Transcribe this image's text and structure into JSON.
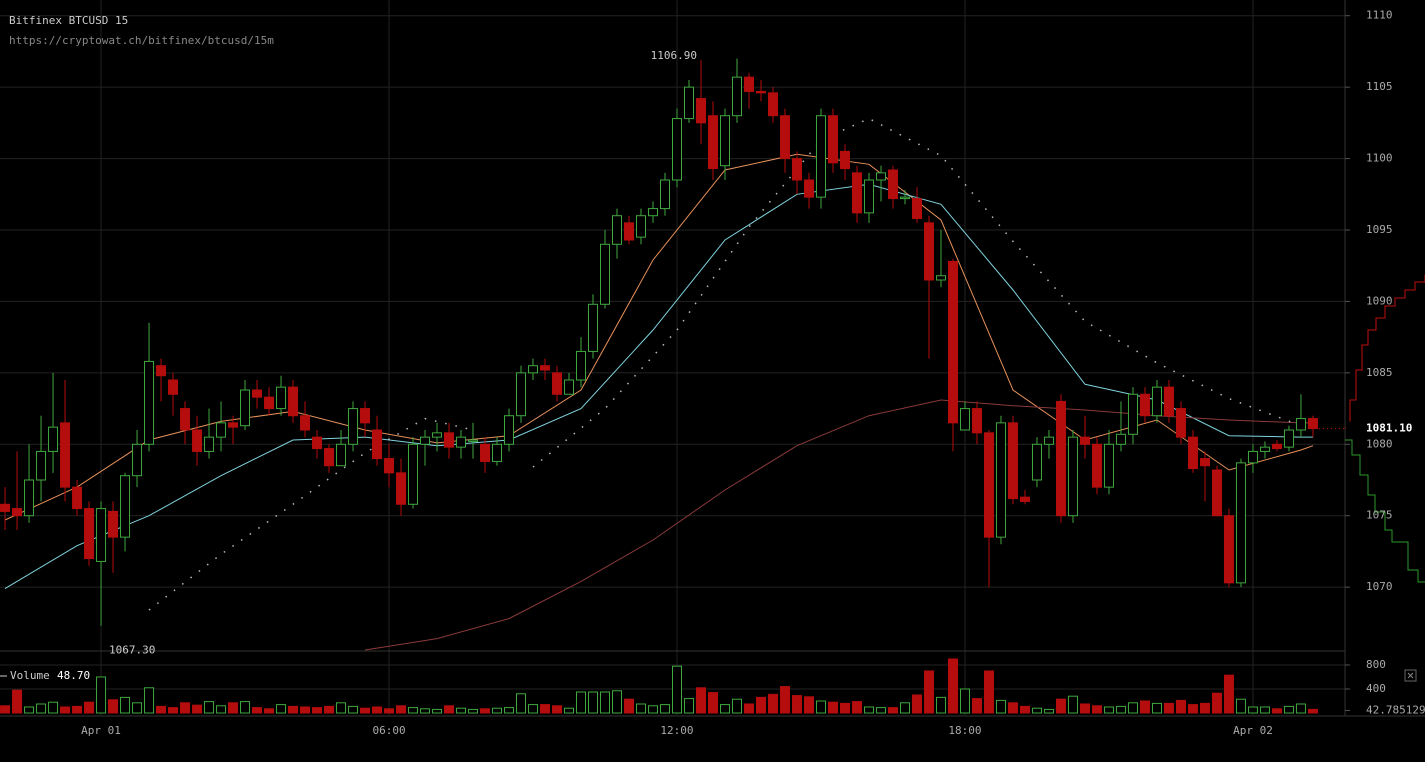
{
  "chart_data": {
    "type": "candlestick",
    "title": "Bitfinex BTCUSD 15",
    "subtitle": "https://cryptowat.ch/bitfinex/btcusd/15m",
    "up_color": "#3fa83f",
    "down_color": "#b50d0d",
    "grid": true,
    "xlim": [
      -0.42,
      111.67
    ],
    "xticks": [
      {
        "value": 8,
        "label": "Apr 01"
      },
      {
        "value": 32,
        "label": "06:00"
      },
      {
        "value": 56,
        "label": "12:00"
      },
      {
        "value": 80,
        "label": "18:00"
      },
      {
        "value": 104,
        "label": "Apr 02"
      }
    ],
    "ylim": [
      1065.6,
      1111.1
    ],
    "yticks": [
      1070,
      1075,
      1080,
      1085,
      1090,
      1095,
      1100,
      1105,
      1110
    ],
    "open": [
      1075.8,
      1075.5,
      1075,
      1077.5,
      1079.5,
      1081.5,
      1077,
      1075.5,
      1071.8,
      1075.3,
      1073.5,
      1077.8,
      1080,
      1085.5,
      1084.5,
      1082.5,
      1081,
      1079.5,
      1080.5,
      1081.5,
      1081.3,
      1083.8,
      1083.3,
      1082.5,
      1084,
      1082,
      1080.5,
      1079.7,
      1078.5,
      1080,
      1082.5,
      1081,
      1079,
      1078,
      1075.8,
      1080,
      1080.5,
      1080.8,
      1079.8,
      1080.2,
      1080,
      1078.8,
      1080,
      1082,
      1085,
      1085.5,
      1085,
      1083.5,
      1084.5,
      1086.5,
      1089.8,
      1094,
      1095.5,
      1094.5,
      1096,
      1096.5,
      1098.5,
      1102.8,
      1104.2,
      1103,
      1099.5,
      1103,
      1105.7,
      1104.7,
      1104.6,
      1103,
      1100,
      1098.5,
      1097.3,
      1103,
      1100.5,
      1099,
      1096.2,
      1098.5,
      1099.2,
      1097.2,
      1097.2,
      1095.5,
      1091.5,
      1092.8,
      1081,
      1082.5,
      1080.8,
      1073.5,
      1081.5,
      1076.3,
      1077.5,
      1080,
      1083,
      1075,
      1080.5,
      1080,
      1077,
      1080,
      1080.7,
      1083.5,
      1082,
      1084,
      1082.5,
      1080.5,
      1079,
      1078.2,
      1075,
      1070.3,
      1078.7,
      1079.5,
      1080,
      1079.8,
      1081,
      1081.8
    ],
    "high": [
      1077,
      1079.5,
      1080,
      1082,
      1085,
      1084.5,
      1077.5,
      1076,
      1076,
      1076,
      1078,
      1081,
      1088.5,
      1086,
      1085,
      1083,
      1082,
      1082.5,
      1083,
      1082,
      1084.5,
      1084.5,
      1084,
      1084.8,
      1084.5,
      1083,
      1081,
      1080,
      1081,
      1083,
      1083,
      1082,
      1080,
      1079,
      1080.5,
      1081,
      1081.5,
      1081.5,
      1081,
      1081.5,
      1080.5,
      1080.5,
      1082.5,
      1085.5,
      1086,
      1086,
      1085.5,
      1085,
      1087.5,
      1090.5,
      1095,
      1096.5,
      1096,
      1096.5,
      1097,
      1099,
      1103.5,
      1105.5,
      1106.9,
      1104,
      1103.5,
      1107,
      1106,
      1105.5,
      1105,
      1103.5,
      1100.5,
      1099,
      1103.5,
      1103.5,
      1101,
      1099.5,
      1099,
      1099.5,
      1099.5,
      1097.8,
      1098,
      1096,
      1095,
      1093,
      1083,
      1083,
      1081,
      1082,
      1082,
      1076.8,
      1080.5,
      1081,
      1083.5,
      1081,
      1082,
      1080.5,
      1081,
      1083,
      1084,
      1084,
      1084.5,
      1084.5,
      1083,
      1081,
      1079.5,
      1078.5,
      1075.5,
      1079,
      1080,
      1080.2,
      1080.3,
      1081.3,
      1083.5,
      1082
    ],
    "low": [
      1074,
      1074,
      1074.5,
      1076,
      1078,
      1076,
      1075,
      1071.5,
      1067.3,
      1071,
      1072.5,
      1077,
      1079.5,
      1083,
      1082,
      1080,
      1078.5,
      1079,
      1079.5,
      1080,
      1081,
      1082.5,
      1082,
      1082,
      1081.5,
      1080.5,
      1079,
      1078,
      1078.5,
      1079.5,
      1080.5,
      1078.5,
      1077,
      1075,
      1075.5,
      1078.5,
      1079.5,
      1079,
      1079,
      1079,
      1078,
      1078.5,
      1079.5,
      1081.5,
      1084.5,
      1084.5,
      1083,
      1083.5,
      1084,
      1086,
      1089.5,
      1093,
      1094,
      1094,
      1095.5,
      1096,
      1098,
      1102.5,
      1101,
      1098.5,
      1098.5,
      1102.5,
      1103.5,
      1104,
      1102.5,
      1099,
      1097.5,
      1096.5,
      1096.5,
      1099,
      1098.5,
      1095.5,
      1095.5,
      1097,
      1096.5,
      1096.8,
      1095.5,
      1086,
      1091,
      1079.5,
      1081,
      1080,
      1070,
      1073,
      1075.8,
      1075.8,
      1077,
      1079,
      1074.5,
      1074.5,
      1079,
      1076.5,
      1076.5,
      1079.5,
      1080,
      1081.5,
      1081.5,
      1081.5,
      1080,
      1078,
      1076,
      1075,
      1070,
      1070,
      1078,
      1079,
      1079.5,
      1079.5,
      1080.5,
      1080.5
    ],
    "close": [
      1075.3,
      1075,
      1077.5,
      1079.5,
      1081.2,
      1077,
      1075.5,
      1072,
      1075.5,
      1073.5,
      1077.8,
      1080,
      1085.8,
      1084.8,
      1083.5,
      1081,
      1079.5,
      1080.5,
      1081.5,
      1081.2,
      1083.8,
      1083.3,
      1082.5,
      1084,
      1082,
      1081,
      1079.7,
      1078.5,
      1080,
      1082.5,
      1081.5,
      1079,
      1078,
      1075.8,
      1080,
      1080.5,
      1080.8,
      1079.8,
      1080.5,
      1080.3,
      1078.8,
      1080,
      1082,
      1085,
      1085.5,
      1085.2,
      1083.5,
      1084.5,
      1086.5,
      1089.8,
      1094,
      1096,
      1094.3,
      1096,
      1096.5,
      1098.5,
      1102.8,
      1105,
      1102.5,
      1099.3,
      1103,
      1105.7,
      1104.7,
      1104.6,
      1103,
      1100,
      1098.5,
      1097.3,
      1103,
      1099.7,
      1099.3,
      1096.2,
      1098.5,
      1099,
      1097.2,
      1097.3,
      1095.8,
      1091.5,
      1091.8,
      1081.5,
      1082.5,
      1080.8,
      1073.5,
      1081.5,
      1076.2,
      1076,
      1080,
      1080.5,
      1075,
      1080.5,
      1080,
      1077,
      1080,
      1080.7,
      1083.5,
      1082,
      1084,
      1082,
      1080.5,
      1078.3,
      1078.5,
      1075,
      1070.3,
      1078.7,
      1079.5,
      1079.8,
      1079.7,
      1081,
      1081.8,
      1081.1
    ],
    "volume": [
      120,
      380,
      100,
      150,
      180,
      100,
      110,
      180,
      600,
      220,
      260,
      170,
      420,
      110,
      90,
      170,
      130,
      190,
      120,
      170,
      190,
      90,
      70,
      140,
      110,
      100,
      90,
      110,
      170,
      110,
      80,
      100,
      70,
      120,
      90,
      70,
      60,
      120,
      80,
      60,
      70,
      80,
      90,
      320,
      140,
      140,
      120,
      80,
      350,
      350,
      350,
      370,
      230,
      150,
      120,
      140,
      780,
      240,
      420,
      340,
      140,
      230,
      150,
      260,
      310,
      440,
      290,
      270,
      200,
      180,
      160,
      190,
      100,
      90,
      90,
      170,
      300,
      700,
      260,
      900,
      400,
      240,
      700,
      210,
      170,
      110,
      80,
      60,
      230,
      280,
      150,
      120,
      100,
      110,
      170,
      200,
      160,
      160,
      210,
      140,
      160,
      330,
      630,
      230,
      100,
      100,
      70,
      110,
      150,
      60
    ],
    "volume_label": "Volume",
    "volume_last": {
      "value": 48.7,
      "label": "48.70"
    },
    "volume_ylim": [
      0,
      883
    ],
    "volume_yticks": [
      400,
      800,
      42.785129
    ],
    "last_price": {
      "value": 1081.1,
      "label": "1081.10"
    },
    "annotations": [
      {
        "index": 58,
        "value": 1106.9,
        "label": "1106.90"
      },
      {
        "index": 8,
        "value": 1067.3,
        "label": "1067.30"
      }
    ],
    "overlays": [
      {
        "color": "#e8915a",
        "dashed": false,
        "x": [
          0,
          6,
          12,
          18,
          24,
          30,
          36,
          42,
          48,
          54,
          60,
          66,
          72,
          78,
          84,
          90,
          96,
          102,
          108,
          109
        ],
        "values": [
          1074.7,
          1077,
          1080.3,
          1081.6,
          1082.3,
          1081,
          1080.1,
          1080.6,
          1083.8,
          1092.9,
          1099.2,
          1100.3,
          1099.6,
          1095.7,
          1083.8,
          1080.3,
          1081.7,
          1078.2,
          1079.6,
          1079.9
        ]
      },
      {
        "color": "#7fd3de",
        "dashed": false,
        "x": [
          0,
          6,
          12,
          18,
          24,
          30,
          36,
          42,
          48,
          54,
          60,
          66,
          72,
          78,
          84,
          90,
          96,
          102,
          108,
          109
        ],
        "values": [
          1069.9,
          1072.9,
          1075,
          1077.8,
          1080.3,
          1080.5,
          1079.9,
          1080.3,
          1082.5,
          1088,
          1094.3,
          1097.5,
          1098.2,
          1096.8,
          1090.8,
          1084.2,
          1083.1,
          1080.6,
          1080.5,
          1080.5
        ]
      },
      {
        "color": "#8a3a3a",
        "dashed": false,
        "x": [
          30,
          36,
          42,
          48,
          54,
          60,
          66,
          72,
          78,
          84,
          90,
          96,
          102,
          108,
          109
        ],
        "values": [
          1065.6,
          1066.4,
          1067.8,
          1070.4,
          1073.3,
          1076.8,
          1079.9,
          1082,
          1083.1,
          1082.7,
          1082.4,
          1082,
          1081.7,
          1081.5,
          1081.5
        ]
      },
      {
        "color": "#bbbbbb",
        "dashed": true,
        "x": [
          12,
          18,
          24,
          30,
          35,
          39,
          41,
          44,
          50,
          56,
          62,
          68,
          72,
          78,
          84,
          90,
          96,
          102,
          108
        ],
        "values": [
          1068.4,
          1072.3,
          1075.8,
          1079.4,
          1081.8,
          1081,
          null,
          1078.4,
          1082.5,
          1088,
          1095.2,
          1101.3,
          1102.8,
          1100.2,
          1094.2,
          1088.6,
          1085.7,
          1083.2,
          1081.3
        ]
      }
    ]
  }
}
